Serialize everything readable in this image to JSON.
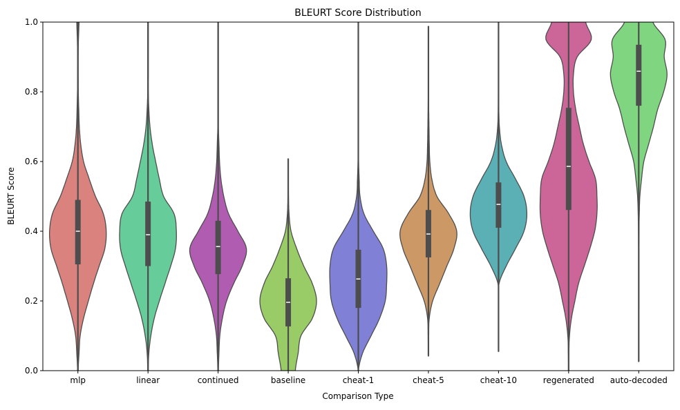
{
  "chart_data": {
    "type": "violin",
    "title": "BLEURT Score Distribution",
    "xlabel": "Comparison Type",
    "ylabel": "BLEURT Score",
    "ylim": [
      0,
      1.0
    ],
    "yticks": [
      "0.0",
      "0.2",
      "0.4",
      "0.6",
      "0.8",
      "1.0"
    ],
    "grid": false,
    "density_grid": [
      0,
      0.05,
      0.1,
      0.15,
      0.2,
      0.25,
      0.3,
      0.35,
      0.4,
      0.45,
      0.5,
      0.55,
      0.6,
      0.65,
      0.7,
      0.75,
      0.8,
      0.85,
      0.9,
      0.95,
      1.0
    ],
    "series": [
      {
        "name": "mlp",
        "color": "#d9827e",
        "median": 0.4,
        "q1": 0.305,
        "q3": 0.49,
        "whisker_low": 0.0,
        "whisker_high": 1.0,
        "density": [
          0.01,
          0.04,
          0.08,
          0.2,
          0.37,
          0.55,
          0.75,
          0.95,
          1.0,
          0.9,
          0.62,
          0.4,
          0.2,
          0.1,
          0.05,
          0.03,
          0.015,
          0.01,
          0.01,
          0.02,
          0.04
        ]
      },
      {
        "name": "linear",
        "color": "#66cc99",
        "median": 0.39,
        "q1": 0.3,
        "q3": 0.485,
        "whisker_low": 0.0,
        "whisker_high": 1.0,
        "density": [
          0.01,
          0.03,
          0.1,
          0.22,
          0.4,
          0.6,
          0.8,
          0.97,
          1.0,
          0.92,
          0.55,
          0.4,
          0.27,
          0.15,
          0.07,
          0.03,
          0.01,
          0.01,
          0.01,
          0.01,
          0.01
        ]
      },
      {
        "name": "continued",
        "color": "#b05cb0",
        "median": 0.356,
        "q1": 0.277,
        "q3": 0.43,
        "whisker_low": 0.0,
        "whisker_high": 1.0,
        "density": [
          0.01,
          0.03,
          0.06,
          0.15,
          0.3,
          0.55,
          0.85,
          1.0,
          0.7,
          0.37,
          0.2,
          0.1,
          0.05,
          0.03,
          0.01,
          0.01,
          0.01,
          0.01,
          0.01,
          0.01,
          0.01
        ]
      },
      {
        "name": "baseline",
        "color": "#99cc66",
        "median": 0.196,
        "q1": 0.127,
        "q3": 0.265,
        "whisker_low": 0.0,
        "whisker_high": 0.608,
        "density": [
          0.25,
          0.35,
          0.45,
          0.85,
          1.0,
          0.85,
          0.55,
          0.3,
          0.1,
          0.03,
          0.01,
          0.005,
          0.003,
          0,
          0,
          0,
          0,
          0,
          0,
          0,
          0
        ]
      },
      {
        "name": "cheat-1",
        "color": "#8080d6",
        "median": 0.263,
        "q1": 0.18,
        "q3": 0.347,
        "whisker_low": 0.0,
        "whisker_high": 1.0,
        "density": [
          0,
          0.15,
          0.45,
          0.75,
          0.95,
          1.0,
          1.0,
          0.88,
          0.53,
          0.2,
          0.06,
          0.03,
          0.01,
          0.005,
          0.005,
          0.005,
          0.005,
          0.005,
          0.005,
          0.005,
          0.005
        ]
      },
      {
        "name": "cheat-5",
        "color": "#cc9966",
        "median": 0.392,
        "q1": 0.325,
        "q3": 0.461,
        "whisker_low": 0.042,
        "whisker_high": 0.988,
        "density": [
          0,
          0.005,
          0.01,
          0.03,
          0.15,
          0.4,
          0.65,
          0.9,
          1.0,
          0.72,
          0.3,
          0.12,
          0.05,
          0.03,
          0.02,
          0.01,
          0.005,
          0.005,
          0.005,
          0.005,
          0
        ]
      },
      {
        "name": "cheat-10",
        "color": "#5ab0b4",
        "median": 0.477,
        "q1": 0.41,
        "q3": 0.54,
        "whisker_low": 0.055,
        "whisker_high": 1.0,
        "density": [
          0,
          0,
          0.003,
          0.005,
          0.005,
          0.02,
          0.27,
          0.6,
          0.9,
          1.0,
          0.9,
          0.6,
          0.27,
          0.1,
          0.03,
          0.01,
          0.005,
          0.005,
          0.005,
          0.005,
          0.005
        ]
      },
      {
        "name": "regenerated",
        "color": "#cc6699",
        "median": 0.586,
        "q1": 0.461,
        "q3": 0.754,
        "whisker_low": 0.0,
        "whisker_high": 1.0,
        "density": [
          0.005,
          0.01,
          0.03,
          0.1,
          0.22,
          0.35,
          0.55,
          0.75,
          0.92,
          1.0,
          1.0,
          0.95,
          0.72,
          0.52,
          0.38,
          0.25,
          0.17,
          0.17,
          0.3,
          0.8,
          0.6
        ]
      },
      {
        "name": "auto-decoded",
        "color": "#80d680",
        "median": 0.859,
        "q1": 0.76,
        "q3": 0.935,
        "whisker_low": 0.026,
        "whisker_high": 1.0,
        "density": [
          0,
          0.003,
          0.003,
          0.003,
          0.005,
          0.005,
          0.005,
          0.005,
          0.01,
          0.02,
          0.04,
          0.1,
          0.18,
          0.35,
          0.52,
          0.67,
          0.88,
          1.0,
          0.9,
          0.93,
          0.5
        ]
      }
    ]
  }
}
